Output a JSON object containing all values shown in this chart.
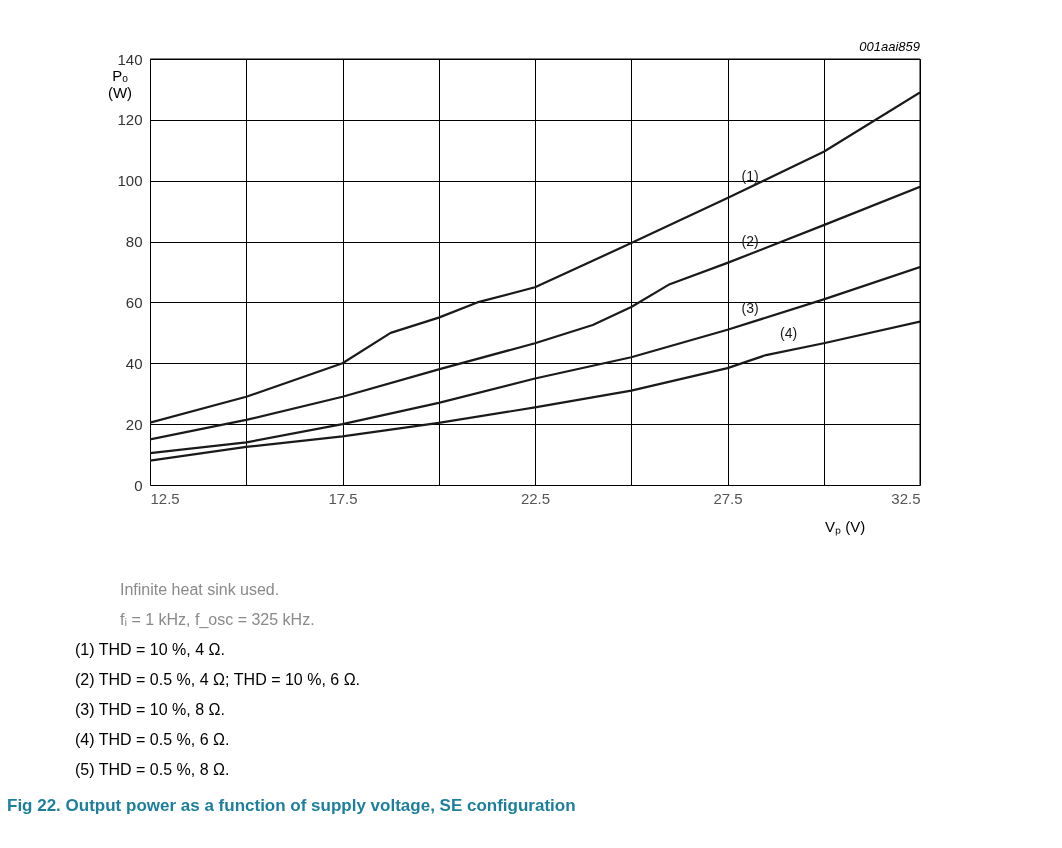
{
  "chart_data": {
    "type": "line",
    "title": "Fig 22.   Output power as a function of supply voltage, SE configuration",
    "xlabel": "Vₚ (V)",
    "ylabel": "Pₒ (W)",
    "xlim": [
      12.5,
      32.5
    ],
    "xticks": [
      12.5,
      {
        "value": 15,
        "label": null
      },
      17.5,
      {
        "value": 20,
        "label": null
      },
      22.5,
      {
        "value": 25,
        "label": null
      },
      27.5,
      {
        "value": 30,
        "label": null
      },
      32.5
    ],
    "ylim": [
      0,
      140
    ],
    "yticks": [
      0,
      20,
      40,
      60,
      80,
      100,
      120,
      140
    ],
    "grid": true,
    "line_style": "solid",
    "series": [
      {
        "name": "(1)",
        "color": "#1a1a1a",
        "x": [
          12.5,
          15,
          17.5,
          18.75,
          20,
          21,
          22.5,
          25,
          27.5,
          30,
          32.5
        ],
        "values": [
          20.5,
          29,
          40,
          50,
          55,
          60,
          65,
          79.5,
          94.3,
          109.5,
          129
        ]
      },
      {
        "name": "(2)",
        "color": "#1a1a1a",
        "x": [
          12.5,
          15,
          17.5,
          20,
          22.5,
          24,
          25,
          26,
          27.5,
          30,
          32.5
        ],
        "values": [
          15,
          21.4,
          29,
          38,
          46.6,
          52.6,
          58.5,
          66,
          73,
          85.4,
          98
        ]
      },
      {
        "name": "(3)",
        "color": "#1a1a1a",
        "x": [
          12.5,
          15,
          17.5,
          20,
          22.5,
          25,
          27.5,
          30,
          32.5
        ],
        "values": [
          10.5,
          14,
          20,
          27,
          35,
          42,
          51,
          61,
          71.6
        ]
      },
      {
        "name": "(4)",
        "color": "#1a1a1a",
        "x": [
          12.5,
          15,
          17.5,
          20,
          22.5,
          25,
          27.5,
          28.5,
          30,
          32.5
        ],
        "values": [
          8,
          12.5,
          16,
          20.4,
          25.5,
          31,
          38.4,
          42.7,
          46.6,
          53.7
        ]
      }
    ],
    "annotations": [
      "001aai859",
      "Infinite heat sink used.",
      "fᵢ = 1 kHz, f_osc = 325 kHz.",
      "(1)   THD = 10 %, 4 Ω.",
      "(2)   THD = 0.5 %, 4 Ω; THD = 10 %, 6 Ω.",
      "(3)   THD = 10 %, 8 Ω.",
      "(4)   THD = 0.5 %, 6 Ω.",
      "(5)   THD = 0.5 %, 8 Ω."
    ]
  }
}
